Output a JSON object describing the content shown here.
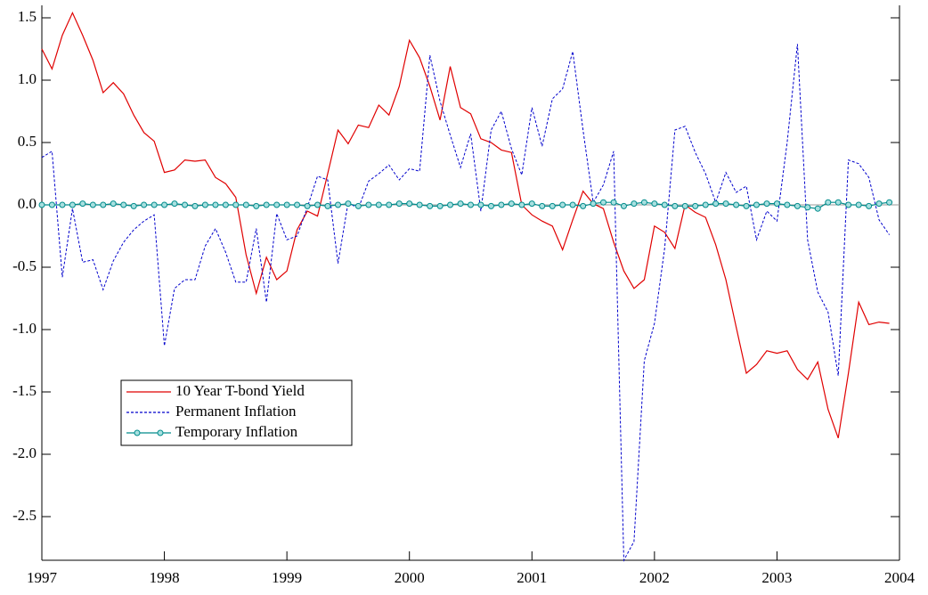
{
  "chart_data": {
    "type": "line",
    "x": [
      1997,
      1997.083,
      1997.167,
      1997.25,
      1997.333,
      1997.417,
      1997.5,
      1997.583,
      1997.667,
      1997.75,
      1997.833,
      1997.917,
      1998,
      1998.083,
      1998.167,
      1998.25,
      1998.333,
      1998.417,
      1998.5,
      1998.583,
      1998.667,
      1998.75,
      1998.833,
      1998.917,
      1999,
      1999.083,
      1999.167,
      1999.25,
      1999.333,
      1999.417,
      1999.5,
      1999.583,
      1999.667,
      1999.75,
      1999.833,
      1999.917,
      2000,
      2000.083,
      2000.167,
      2000.25,
      2000.333,
      2000.417,
      2000.5,
      2000.583,
      2000.667,
      2000.75,
      2000.833,
      2000.917,
      2001,
      2001.083,
      2001.167,
      2001.25,
      2001.333,
      2001.417,
      2001.5,
      2001.583,
      2001.667,
      2001.75,
      2001.833,
      2001.917,
      2002,
      2002.083,
      2002.167,
      2002.25,
      2002.333,
      2002.417,
      2002.5,
      2002.583,
      2002.667,
      2002.75,
      2002.833,
      2002.917,
      2003,
      2003.083,
      2003.167,
      2003.25,
      2003.333,
      2003.417,
      2003.5,
      2003.583,
      2003.667,
      2003.75,
      2003.833,
      2003.917
    ],
    "series": [
      {
        "name": "10 Year T-bond Yield",
        "color": "#e00000",
        "dash": false,
        "markers": false,
        "values": [
          1.25,
          1.09,
          1.36,
          1.54,
          1.36,
          1.16,
          0.9,
          0.98,
          0.89,
          0.72,
          0.58,
          0.51,
          0.26,
          0.28,
          0.36,
          0.35,
          0.36,
          0.22,
          0.17,
          0.06,
          -0.4,
          -0.71,
          -0.42,
          -0.6,
          -0.53,
          -0.2,
          -0.05,
          -0.09,
          0.25,
          0.6,
          0.49,
          0.64,
          0.62,
          0.8,
          0.72,
          0.95,
          1.32,
          1.18,
          0.95,
          0.68,
          1.11,
          0.78,
          0.73,
          0.53,
          0.5,
          0.44,
          0.42,
          0.0,
          -0.08,
          -0.13,
          -0.17,
          -0.36,
          -0.12,
          0.11,
          0.01,
          -0.03,
          -0.3,
          -0.53,
          -0.67,
          -0.6,
          -0.17,
          -0.22,
          -0.35,
          0.0,
          -0.06,
          -0.1,
          -0.32,
          -0.6,
          -0.98,
          -1.35,
          -1.28,
          -1.17,
          -1.19,
          -1.17,
          -1.32,
          -1.4,
          -1.26,
          -1.64,
          -1.87,
          -1.35,
          -0.78,
          -0.96,
          -0.94,
          -0.95
        ]
      },
      {
        "name": "Permanent Inflation",
        "color": "#0000cc",
        "dash": true,
        "markers": false,
        "values": [
          0.38,
          0.43,
          -0.58,
          -0.03,
          -0.46,
          -0.44,
          -0.68,
          -0.45,
          -0.3,
          -0.2,
          -0.13,
          -0.08,
          -1.13,
          -0.67,
          -0.6,
          -0.6,
          -0.33,
          -0.19,
          -0.38,
          -0.62,
          -0.62,
          -0.19,
          -0.78,
          -0.07,
          -0.28,
          -0.25,
          -0.02,
          0.23,
          0.2,
          -0.47,
          0.02,
          -0.03,
          0.19,
          0.25,
          0.32,
          0.2,
          0.29,
          0.27,
          1.2,
          0.83,
          0.56,
          0.3,
          0.57,
          -0.05,
          0.6,
          0.75,
          0.45,
          0.24,
          0.78,
          0.47,
          0.85,
          0.93,
          1.23,
          0.6,
          0.02,
          0.16,
          0.43,
          -2.85,
          -2.7,
          -1.25,
          -0.95,
          -0.35,
          0.6,
          0.63,
          0.42,
          0.25,
          0.02,
          0.26,
          0.1,
          0.15,
          -0.28,
          -0.05,
          -0.13,
          0.5,
          1.29,
          -0.28,
          -0.7,
          -0.86,
          -1.37,
          0.36,
          0.33,
          0.22,
          -0.12,
          -0.24
        ]
      },
      {
        "name": "Temporary Inflation",
        "color": "#008b8b",
        "dash": false,
        "markers": true,
        "values": [
          0.0,
          0.0,
          0.0,
          0.0,
          0.01,
          0.0,
          0.0,
          0.01,
          0.0,
          -0.01,
          0.0,
          0.0,
          0.0,
          0.01,
          0.0,
          -0.01,
          0.0,
          0.0,
          0.0,
          0.0,
          0.0,
          -0.01,
          0.0,
          0.0,
          0.0,
          0.0,
          -0.01,
          0.0,
          -0.01,
          0.0,
          0.01,
          -0.01,
          0.0,
          0.0,
          0.0,
          0.01,
          0.01,
          0.0,
          -0.01,
          -0.01,
          0.0,
          0.01,
          0.0,
          0.0,
          -0.01,
          0.0,
          0.01,
          0.0,
          0.01,
          -0.01,
          -0.01,
          0.0,
          0.0,
          -0.01,
          0.01,
          0.02,
          0.02,
          -0.01,
          0.01,
          0.02,
          0.01,
          0.0,
          -0.01,
          -0.01,
          -0.01,
          0.0,
          0.01,
          0.01,
          0.0,
          -0.01,
          0.0,
          0.01,
          0.01,
          0.0,
          -0.01,
          -0.02,
          -0.03,
          0.02,
          0.02,
          0.0,
          0.0,
          -0.01,
          0.01,
          0.02
        ]
      }
    ],
    "xlim": [
      1997,
      2004
    ],
    "xticks": [
      1997,
      1998,
      1999,
      2000,
      2001,
      2002,
      2003,
      2004
    ],
    "ylim": [
      -2.85,
      1.6
    ],
    "yticks": [
      {
        "value": -2.5,
        "label": "-2.5"
      },
      {
        "value": -2,
        "label": "-2.0"
      },
      {
        "value": -1.5,
        "label": "-1.5"
      },
      {
        "value": -1,
        "label": "-1.0"
      },
      {
        "value": -0.5,
        "label": "-0.5"
      },
      {
        "value": 0,
        "label": "0.0"
      },
      {
        "value": 0.5,
        "label": "0.5"
      },
      {
        "value": 1,
        "label": "1.0"
      },
      {
        "value": 1.5,
        "label": "1.5"
      }
    ],
    "zero_line": true
  }
}
